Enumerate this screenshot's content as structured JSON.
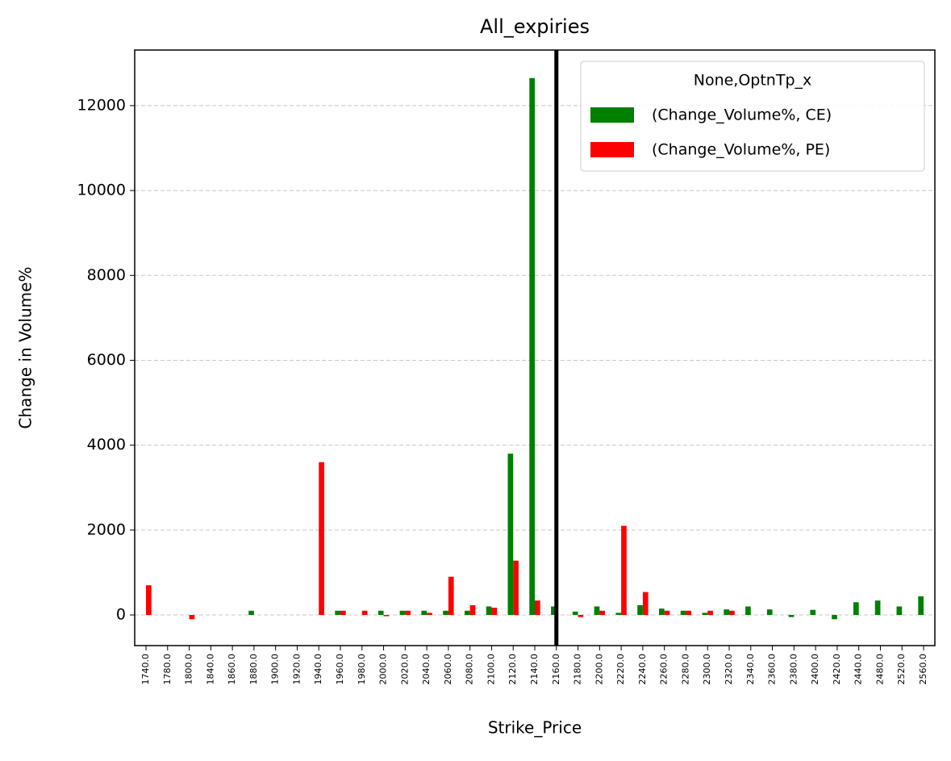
{
  "chart_data": {
    "type": "bar",
    "title": "All_expiries",
    "x_label": "Strike_Price",
    "y_label": "Change in Volume%",
    "categories": [
      "1740.0",
      "1780.0",
      "1800.0",
      "1840.0",
      "1860.0",
      "1880.0",
      "1900.0",
      "1920.0",
      "1940.0",
      "1960.0",
      "1980.0",
      "2000.0",
      "2020.0",
      "2040.0",
      "2060.0",
      "2080.0",
      "2100.0",
      "2120.0",
      "2140.0",
      "2160.0",
      "2180.0",
      "2200.0",
      "2220.0",
      "2240.0",
      "2260.0",
      "2280.0",
      "2300.0",
      "2320.0",
      "2340.0",
      "2360.0",
      "2380.0",
      "2400.0",
      "2420.0",
      "2440.0",
      "2480.0",
      "2520.0",
      "2560.0"
    ],
    "series": [
      {
        "name": "(Change_Volume%, CE)",
        "color": "#008000",
        "values": [
          0,
          0,
          0,
          0,
          0,
          100,
          0,
          0,
          0,
          100,
          0,
          100,
          100,
          100,
          100,
          100,
          200,
          3800,
          12650,
          200,
          80,
          200,
          50,
          230,
          150,
          100,
          50,
          130,
          200,
          130,
          -50,
          120,
          -100,
          300,
          340,
          200,
          440
        ]
      },
      {
        "name": "(Change_Volume%, PE)",
        "color": "#ff0000",
        "values": [
          700,
          0,
          -100,
          0,
          0,
          0,
          0,
          0,
          3600,
          100,
          100,
          -30,
          100,
          50,
          900,
          230,
          170,
          1280,
          340,
          0,
          -50,
          100,
          2100,
          540,
          100,
          100,
          100,
          100,
          0,
          0,
          0,
          0,
          0,
          0,
          0,
          0,
          0
        ]
      }
    ],
    "legend_title": "None,OptnTp_x",
    "legend": "upper right",
    "ylim": [
      -722,
      13310
    ],
    "yticks": [
      0,
      2000,
      4000,
      6000,
      8000,
      10000,
      12000
    ],
    "grid": true,
    "vline": {
      "category": "2160.0",
      "color": "#000000"
    }
  }
}
